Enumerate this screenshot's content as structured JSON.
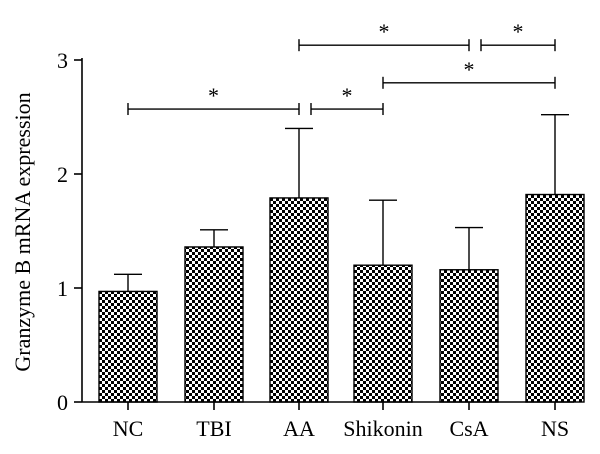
{
  "chart_data": {
    "type": "bar",
    "title": "",
    "xlabel": "",
    "ylabel": "Granzyme B mRNA expression",
    "ylim": [
      0,
      3
    ],
    "yticks": [
      0,
      1,
      2,
      3
    ],
    "categories": [
      "NC",
      "TBI",
      "AA",
      "Shikonin",
      "CsA",
      "NS"
    ],
    "values": [
      0.97,
      1.36,
      1.79,
      1.2,
      1.16,
      1.82
    ],
    "error_upper": [
      0.15,
      0.15,
      0.61,
      0.57,
      0.37,
      0.7
    ],
    "bar_fill": "checkered",
    "colors": {
      "bar_dark": "#000000",
      "bar_light": "#ffffff",
      "axis": "#000000"
    },
    "significance": [
      {
        "from": "NC",
        "to": "AA",
        "label": "*",
        "y": 2.57
      },
      {
        "from": "AA",
        "to": "Shikonin",
        "label": "*",
        "y": 2.57
      },
      {
        "from": "AA",
        "to": "CsA",
        "label": "*",
        "y": 3.13
      },
      {
        "from": "CsA",
        "to": "NS",
        "label": "*",
        "y": 3.13
      },
      {
        "from": "Shikonin",
        "to": "NS",
        "label": "*",
        "y": 2.8
      }
    ]
  }
}
